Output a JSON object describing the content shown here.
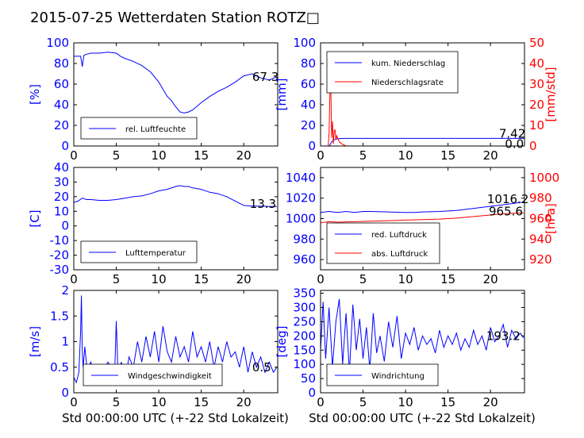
{
  "title": "2015-07-25 Wetterdaten Station ROTZ□",
  "xlabel": "Std 00:00:00 UTC (+-22 Std Lokalzeit)",
  "colors": {
    "left": "#0000ff",
    "right": "#ff0000",
    "axis": "#000000"
  },
  "chart_data": [
    {
      "id": "humidity",
      "type": "line",
      "ylabel": "[%]",
      "xlim": [
        0,
        24
      ],
      "ylim": [
        0,
        100
      ],
      "xticks": [
        0,
        5,
        10,
        15,
        20
      ],
      "yticks": [
        0,
        20,
        40,
        60,
        80,
        100
      ],
      "legend": {
        "placement": "lower-left",
        "entries": [
          {
            "name": "rel. Luftfeuchte",
            "color": "#0000ff"
          }
        ]
      },
      "series": [
        {
          "name": "rel. Luftfeuchte",
          "color": "#0000ff",
          "x": [
            0,
            0.8,
            1,
            1.2,
            1.5,
            2,
            3,
            4,
            5,
            5.5,
            6,
            7,
            8,
            9,
            10,
            10.5,
            11,
            11.5,
            12,
            12.5,
            13,
            13.5,
            14,
            15,
            16,
            17,
            18,
            19,
            20,
            21,
            22,
            23,
            23.9
          ],
          "y": [
            87,
            87,
            77,
            88,
            89,
            90,
            90,
            91,
            90,
            87,
            85,
            82,
            78,
            72,
            62,
            55,
            48,
            44,
            38,
            33,
            32,
            33,
            35,
            42,
            48,
            53,
            57,
            62,
            68,
            70,
            66,
            64,
            67
          ]
        }
      ],
      "annotations": [
        {
          "text": "67.3",
          "x": 21,
          "y": 67
        }
      ]
    },
    {
      "id": "precip",
      "type": "line",
      "ylabel": "[mm]",
      "ylabel_right": "[mm/std]",
      "xlim": [
        0,
        24
      ],
      "ylim": [
        0,
        100
      ],
      "ylim_right": [
        0,
        50
      ],
      "xticks": [
        0,
        5,
        10,
        15,
        20
      ],
      "yticks": [
        0,
        20,
        40,
        60,
        80,
        100
      ],
      "yticks_right": [
        0,
        10,
        20,
        30,
        40,
        50
      ],
      "legend": {
        "placement": "upper-left",
        "entries": [
          {
            "name": "kum. Niederschlag",
            "color": "#0000ff"
          },
          {
            "name": "Niederschlagsrate",
            "color": "#ff0000"
          }
        ]
      },
      "series": [
        {
          "name": "kum. Niederschlag",
          "color": "#0000ff",
          "axis": "left",
          "x": [
            0,
            1,
            1.1,
            1.3,
            1.6,
            2,
            2.5,
            3,
            24
          ],
          "y": [
            0,
            0,
            1,
            4,
            6,
            7,
            7.3,
            7.42,
            7.42
          ]
        },
        {
          "name": "Niederschlagsrate",
          "color": "#ff0000",
          "axis": "right",
          "x": [
            0,
            0.9,
            1.0,
            1.1,
            1.2,
            1.3,
            1.4,
            1.5,
            1.6,
            1.7,
            1.8,
            1.9,
            2.0,
            2.2,
            2.5,
            3.0,
            24
          ],
          "y": [
            0,
            0,
            6,
            26,
            31,
            4,
            12,
            1,
            7,
            8,
            3,
            5,
            4,
            2,
            1,
            0,
            0
          ]
        }
      ],
      "annotations": [
        {
          "text": "7.42",
          "x": 21,
          "y": 12
        },
        {
          "text": "0.0",
          "x": 21.7,
          "y": 2
        }
      ]
    },
    {
      "id": "temperature",
      "type": "line",
      "ylabel": "[C]",
      "xlim": [
        0,
        24
      ],
      "ylim": [
        -30,
        40
      ],
      "xticks": [
        0,
        5,
        10,
        15,
        20
      ],
      "yticks": [
        -30,
        -20,
        -10,
        0,
        10,
        20,
        30,
        40
      ],
      "legend": {
        "placement": "lower-left",
        "entries": [
          {
            "name": "Lufttemperatur",
            "color": "#0000ff"
          }
        ]
      },
      "series": [
        {
          "name": "Lufttemperatur",
          "color": "#0000ff",
          "x": [
            0,
            0.5,
            1,
            1.5,
            2,
            3,
            4,
            5,
            6,
            7,
            8,
            9,
            10,
            11,
            12,
            12.5,
            13,
            13.5,
            14,
            15,
            16,
            17,
            18,
            19,
            20,
            21,
            22,
            23,
            23.9
          ],
          "y": [
            16,
            17,
            19,
            18,
            18,
            17.5,
            17.5,
            18,
            19,
            20,
            20.5,
            22,
            24,
            25,
            27,
            27.5,
            27,
            27,
            26,
            25,
            23,
            22,
            20,
            17,
            14,
            13.5,
            13.5,
            13.3,
            13.3
          ]
        }
      ],
      "annotations": [
        {
          "text": "13.3",
          "x": 20.7,
          "y": 15
        }
      ]
    },
    {
      "id": "pressure",
      "type": "line",
      "ylabel_right": "[hPa]",
      "xlim": [
        0,
        24
      ],
      "ylim": [
        950,
        1050
      ],
      "ylim_right": [
        910,
        1010
      ],
      "xticks": [
        0,
        5,
        10,
        15,
        20
      ],
      "yticks": [
        960,
        980,
        1000,
        1020,
        1040
      ],
      "yticks_right": [
        920,
        940,
        960,
        980,
        1000
      ],
      "legend": {
        "placement": "lower-left",
        "entries": [
          {
            "name": "red. Luftdruck",
            "color": "#0000ff"
          },
          {
            "name": "abs. Luftdruck",
            "color": "#ff0000"
          }
        ]
      },
      "series": [
        {
          "name": "red. Luftdruck",
          "color": "#0000ff",
          "axis": "left",
          "x": [
            0,
            1,
            2,
            3,
            4,
            5,
            6,
            8,
            10,
            11,
            12,
            14,
            16,
            18,
            20,
            22,
            23.9
          ],
          "y": [
            1006,
            1007,
            1006,
            1007,
            1006,
            1007,
            1007,
            1006.5,
            1006,
            1006,
            1006.5,
            1007,
            1008,
            1010,
            1012,
            1014,
            1016.2
          ]
        },
        {
          "name": "abs. Luftdruck",
          "color": "#ff0000",
          "axis": "right",
          "x": [
            0,
            1,
            2,
            4,
            6,
            8,
            10,
            12,
            14,
            16,
            18,
            20,
            22,
            23.9
          ],
          "y": [
            956,
            957,
            956.5,
            957,
            957.5,
            958,
            958.5,
            959,
            959.5,
            960.5,
            962,
            963.5,
            965,
            965.6
          ]
        }
      ],
      "annotations": [
        {
          "text": "1016.2",
          "x": 19.6,
          "y": 1019
        },
        {
          "text": "965.6",
          "x": 19.8,
          "y": 1007
        }
      ]
    },
    {
      "id": "wind_speed",
      "type": "line",
      "ylabel": "[m/s]",
      "xlim": [
        0,
        24
      ],
      "ylim": [
        0,
        2.0
      ],
      "xticks": [
        0,
        5,
        10,
        15,
        20
      ],
      "yticks": [
        0.0,
        0.5,
        1.0,
        1.5,
        2.0
      ],
      "legend": {
        "placement": "lower-center",
        "entries": [
          {
            "name": "Windgeschwindigkeit",
            "color": "#0000ff"
          }
        ]
      },
      "series": [
        {
          "name": "Windgeschwindigkeit",
          "color": "#0000ff",
          "x": [
            0,
            0.3,
            0.6,
            0.8,
            0.9,
            1.0,
            1.1,
            1.3,
            1.6,
            2,
            2.5,
            3,
            3.5,
            4,
            4.5,
            4.8,
            5.0,
            5.2,
            5.6,
            6,
            6.5,
            7,
            7.5,
            8,
            8.5,
            9,
            9.5,
            10,
            10.5,
            11,
            11.5,
            12,
            12.5,
            13,
            13.5,
            14,
            14.5,
            15,
            15.5,
            16,
            16.5,
            17,
            17.5,
            18,
            18.5,
            19,
            19.5,
            20,
            20.5,
            21,
            21.5,
            22,
            22.5,
            23,
            23.5,
            23.9
          ],
          "y": [
            0.3,
            0.2,
            0.4,
            1.2,
            1.9,
            0.8,
            0.5,
            0.9,
            0.4,
            0.6,
            0.3,
            0.5,
            0.4,
            0.6,
            0.5,
            0.3,
            1.4,
            0.4,
            0.6,
            0.2,
            0.7,
            0.5,
            1.0,
            0.6,
            1.1,
            0.7,
            1.2,
            0.6,
            1.3,
            0.8,
            0.6,
            1.1,
            0.7,
            0.9,
            0.6,
            1.2,
            0.7,
            0.9,
            0.6,
            1.0,
            0.5,
            0.9,
            0.6,
            1.0,
            0.7,
            0.8,
            0.5,
            0.9,
            0.4,
            0.8,
            0.5,
            0.7,
            0.4,
            0.6,
            0.4,
            0.5
          ]
        }
      ],
      "annotations": [
        {
          "text": "0.5",
          "x": 21,
          "y": 0.5
        }
      ]
    },
    {
      "id": "wind_direction",
      "type": "line",
      "ylabel": "[deg]",
      "xlim": [
        0,
        24
      ],
      "ylim": [
        0,
        360
      ],
      "xticks": [
        0,
        5,
        10,
        15,
        20
      ],
      "yticks": [
        0,
        50,
        100,
        150,
        200,
        250,
        300,
        350
      ],
      "legend": {
        "placement": "lower-left",
        "entries": [
          {
            "name": "Windrichtung",
            "color": "#0000ff"
          }
        ]
      },
      "series": [
        {
          "name": "Windrichtung",
          "color": "#0000ff",
          "x": [
            0,
            0.3,
            0.6,
            1,
            1.4,
            1.8,
            2.2,
            2.6,
            3,
            3.4,
            3.8,
            4.2,
            4.6,
            5,
            5.4,
            5.8,
            6.2,
            6.6,
            7,
            7.5,
            8,
            8.5,
            9,
            9.5,
            10,
            10.5,
            11,
            11.5,
            12,
            12.5,
            13,
            13.5,
            14,
            14.5,
            15,
            15.5,
            16,
            16.5,
            17,
            17.5,
            18,
            18.5,
            19,
            19.5,
            20,
            20.5,
            21,
            21.5,
            22,
            22.5,
            23,
            23.5,
            23.9
          ],
          "y": [
            150,
            320,
            120,
            300,
            90,
            250,
            330,
            100,
            280,
            70,
            310,
            150,
            260,
            120,
            230,
            80,
            280,
            140,
            200,
            110,
            250,
            160,
            270,
            120,
            210,
            170,
            230,
            150,
            200,
            170,
            190,
            140,
            220,
            160,
            200,
            170,
            210,
            150,
            190,
            160,
            220,
            170,
            200,
            150,
            230,
            180,
            200,
            240,
            160,
            220,
            190,
            210,
            193
          ]
        }
      ],
      "annotations": [
        {
          "text": "193.2",
          "x": 19.5,
          "y": 200
        }
      ]
    }
  ]
}
